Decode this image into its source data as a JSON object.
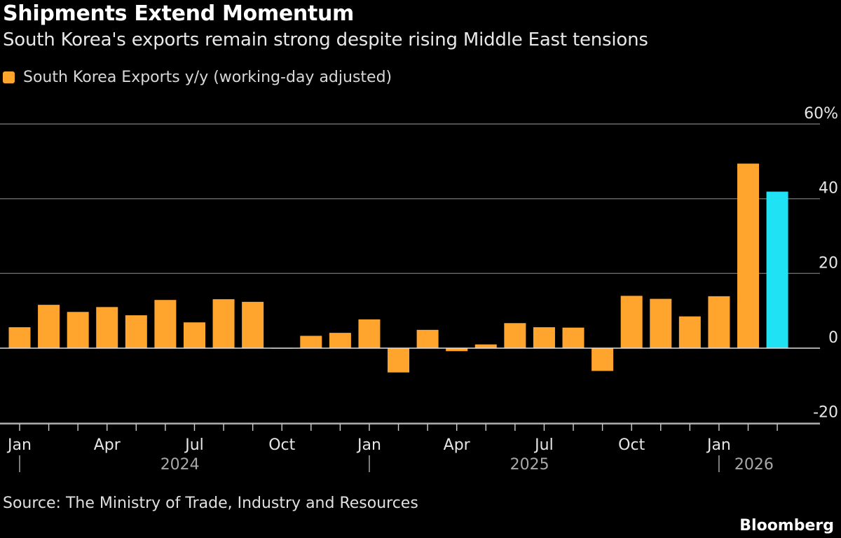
{
  "title": "Shipments Extend Momentum",
  "subtitle": "South Korea's exports remain strong despite rising Middle East tensions",
  "source": "Source: The Ministry of Trade, Industry and Resources",
  "brand": "Bloomberg",
  "colors": {
    "series": "#FFA52D",
    "highlight": "#1FE3F5",
    "background": "#000000"
  },
  "chart_data": {
    "type": "bar",
    "title": "Shipments Extend Momentum",
    "ylabel": "",
    "ylim": [
      -20,
      60
    ],
    "yticks": [
      {
        "value": 60,
        "label": "60%"
      },
      {
        "value": 40,
        "label": "40"
      },
      {
        "value": 20,
        "label": "20"
      },
      {
        "value": 0,
        "label": "0"
      },
      {
        "value": -20,
        "label": "-20"
      }
    ],
    "legend": [
      {
        "name": "South Korea Exports y/y (working-day adjusted)",
        "position": "top-left"
      }
    ],
    "series": [
      {
        "name": "South Korea Exports y/y (working-day adjusted)",
        "categories": [
          "2024-01",
          "2024-02",
          "2024-03",
          "2024-04",
          "2024-05",
          "2024-06",
          "2024-07",
          "2024-08",
          "2024-09",
          "2024-10",
          "2024-11",
          "2024-12",
          "2025-01",
          "2025-02",
          "2025-03",
          "2025-04",
          "2025-05",
          "2025-06",
          "2025-07",
          "2025-08",
          "2025-09",
          "2025-10",
          "2025-11",
          "2025-12",
          "2026-01",
          "2026-02",
          "2026-03"
        ],
        "values": [
          5.6,
          11.6,
          9.7,
          11.0,
          8.8,
          12.9,
          6.9,
          13.1,
          12.4,
          0.1,
          3.3,
          4.1,
          7.7,
          -6.5,
          4.9,
          -0.8,
          1.0,
          6.7,
          5.6,
          5.5,
          -6.1,
          14.0,
          13.2,
          8.5,
          13.9,
          49.4,
          41.9
        ],
        "highlight_last": true
      }
    ],
    "x_month_labels": [
      "Jan",
      "Apr",
      "Jul",
      "Oct",
      "Jan",
      "Apr",
      "Jul",
      "Oct",
      "Jan"
    ],
    "x_years": [
      "2024",
      "2025",
      "2026"
    ]
  }
}
